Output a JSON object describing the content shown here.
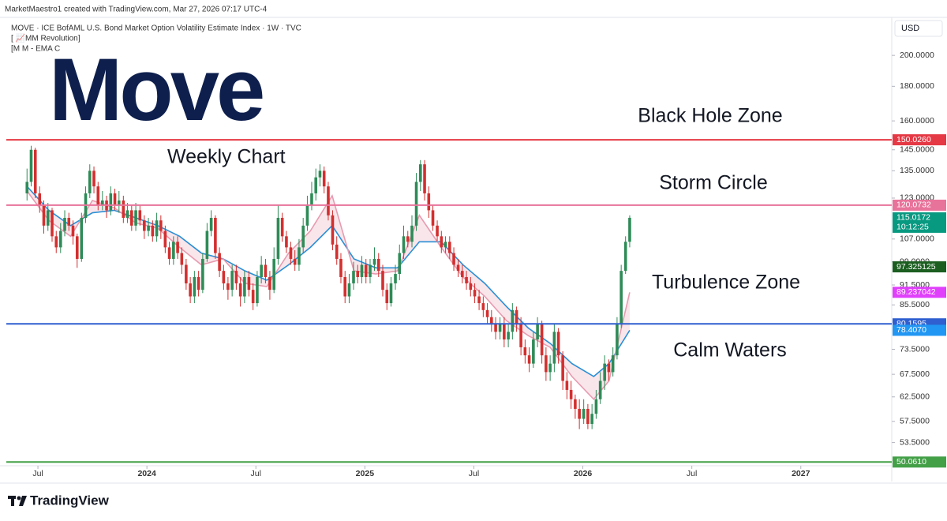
{
  "chart_data": {
    "type": "candlestick",
    "attribution": "MarketMaestro1 created with TradingView.com, Mar 27, 2026 07:17 UTC-4",
    "title": "MOVE · ICE BofAML U.S. Bond Market Option Volatility Estimate Index · 1W · TVC",
    "indicators": [
      "[ 📈MM Revolution]",
      "[M M - EMA C"
    ],
    "watermark": "Move",
    "currency": "USD",
    "brand": "TradingView",
    "log_scale": true,
    "grid": false,
    "up_color": "#2e8b57",
    "down_color": "#d32f2f",
    "xlim": [
      2023.355,
      2027.41
    ],
    "ylim": [
      49.7,
      224
    ],
    "xticks": [
      {
        "value": 2023.5,
        "label": "Jul"
      },
      2024,
      {
        "value": 2024.5,
        "label": "Jul"
      },
      2025,
      {
        "value": 2025.5,
        "label": "Jul"
      },
      2026,
      {
        "value": 2026.5,
        "label": "Jul"
      },
      2027
    ],
    "yticks": [
      {
        "value": 200,
        "label": "200.0000"
      },
      {
        "value": 180,
        "label": "180.0000"
      },
      {
        "value": 160,
        "label": "160.0000"
      },
      {
        "value": 145,
        "label": "145.0000"
      },
      {
        "value": 135,
        "label": "135.0000"
      },
      {
        "value": 123,
        "label": "123.0000"
      },
      {
        "value": 107,
        "label": "107.0000"
      },
      {
        "value": 99,
        "label": "99.0000"
      },
      {
        "value": 91.5,
        "label": "91.5000"
      },
      {
        "value": 85.5,
        "label": "85.5000"
      },
      {
        "value": 73.5,
        "label": "73.5000"
      },
      {
        "value": 67.5,
        "label": "67.5000"
      },
      {
        "value": 62.5,
        "label": "62.5000"
      },
      {
        "value": 57.5,
        "label": "57.5000"
      },
      {
        "value": 53.5,
        "label": "53.5000"
      }
    ],
    "x": [
      2023.45,
      2023.469,
      2023.488,
      2023.508,
      2023.527,
      2023.546,
      2023.565,
      2023.584,
      2023.604,
      2023.623,
      2023.642,
      2023.661,
      2023.68,
      2023.7,
      2023.719,
      2023.738,
      2023.757,
      2023.776,
      2023.796,
      2023.815,
      2023.834,
      2023.853,
      2023.872,
      2023.892,
      2023.911,
      2023.93,
      2023.949,
      2023.968,
      2023.988,
      2024.007,
      2024.026,
      2024.045,
      2024.064,
      2024.084,
      2024.103,
      2024.122,
      2024.141,
      2024.16,
      2024.18,
      2024.199,
      2024.218,
      2024.237,
      2024.256,
      2024.276,
      2024.295,
      2024.314,
      2024.333,
      2024.352,
      2024.372,
      2024.391,
      2024.41,
      2024.429,
      2024.448,
      2024.468,
      2024.487,
      2024.506,
      2024.525,
      2024.544,
      2024.564,
      2024.583,
      2024.602,
      2024.621,
      2024.64,
      2024.66,
      2024.679,
      2024.698,
      2024.717,
      2024.736,
      2024.756,
      2024.775,
      2024.794,
      2024.813,
      2024.832,
      2024.852,
      2024.871,
      2024.89,
      2024.909,
      2024.928,
      2024.948,
      2024.967,
      2024.986,
      2025.005,
      2025.024,
      2025.044,
      2025.063,
      2025.082,
      2025.101,
      2025.12,
      2025.14,
      2025.159,
      2025.178,
      2025.197,
      2025.216,
      2025.236,
      2025.255,
      2025.274,
      2025.293,
      2025.312,
      2025.332,
      2025.351,
      2025.37,
      2025.389,
      2025.408,
      2025.428,
      2025.447,
      2025.466,
      2025.485,
      2025.504,
      2025.524,
      2025.543,
      2025.562,
      2025.581,
      2025.6,
      2025.62,
      2025.639,
      2025.658,
      2025.677,
      2025.696,
      2025.716,
      2025.735,
      2025.754,
      2025.773,
      2025.792,
      2025.812,
      2025.831,
      2025.85,
      2025.869,
      2025.888,
      2025.908,
      2025.927,
      2025.946,
      2025.965,
      2025.984,
      2026.004,
      2026.023,
      2026.042,
      2026.061,
      2026.08,
      2026.1,
      2026.119,
      2026.138,
      2026.157,
      2026.176,
      2026.196,
      2026.215
    ],
    "open": [
      125,
      130,
      145,
      125,
      120,
      112,
      118,
      108,
      104,
      110,
      115,
      112,
      108,
      100,
      115,
      125,
      135,
      128,
      120,
      122,
      118,
      125,
      120,
      122,
      115,
      118,
      112,
      118,
      114,
      110,
      112,
      108,
      114,
      110,
      104,
      100,
      106,
      102,
      98,
      92,
      88,
      94,
      90,
      100,
      110,
      115,
      102,
      96,
      92,
      90,
      96,
      92,
      88,
      94,
      90,
      86,
      94,
      98,
      94,
      90,
      100,
      115,
      108,
      104,
      100,
      98,
      104,
      112,
      120,
      125,
      132,
      135,
      128,
      116,
      105,
      100,
      94,
      88,
      92,
      96,
      94,
      98,
      94,
      98,
      100,
      96,
      90,
      86,
      92,
      95,
      102,
      108,
      106,
      112,
      130,
      138,
      125,
      118,
      112,
      108,
      104,
      106,
      102,
      98,
      96,
      94,
      92,
      90,
      88,
      86,
      84,
      82,
      80,
      78,
      80,
      76,
      78,
      84,
      80,
      74,
      72,
      70,
      76,
      80,
      72,
      68,
      70,
      78,
      72,
      66,
      64,
      62,
      60,
      58,
      60,
      57,
      59,
      62,
      66,
      70,
      68,
      72,
      80,
      96,
      106
    ],
    "high": [
      136,
      147,
      146,
      128,
      122,
      121,
      119,
      110,
      113,
      118,
      117,
      114,
      109,
      117,
      128,
      138,
      137,
      130,
      126,
      124,
      128,
      127,
      126,
      124,
      121,
      120,
      121,
      120,
      116,
      115,
      114,
      117,
      116,
      112,
      106,
      108,
      108,
      104,
      100,
      94,
      96,
      96,
      102,
      113,
      118,
      116,
      104,
      98,
      94,
      98,
      98,
      94,
      96,
      96,
      92,
      96,
      101,
      100,
      96,
      104,
      120,
      117,
      110,
      106,
      103,
      107,
      115,
      124,
      130,
      136,
      138,
      137,
      130,
      118,
      108,
      102,
      96,
      95,
      99,
      98,
      101,
      100,
      100,
      104,
      102,
      98,
      92,
      94,
      98,
      105,
      112,
      110,
      116,
      134,
      140,
      140,
      128,
      120,
      114,
      110,
      108,
      108,
      104,
      100,
      98,
      96,
      94,
      92,
      90,
      88,
      86,
      84,
      82,
      82,
      82,
      80,
      86,
      85,
      82,
      76,
      74,
      78,
      82,
      81,
      74,
      72,
      80,
      79,
      73,
      68,
      66,
      63,
      62,
      62,
      61,
      61,
      64,
      68,
      72,
      71,
      74,
      82,
      98,
      108,
      116
    ],
    "low": [
      122,
      128,
      123,
      117,
      109,
      110,
      106,
      102,
      102,
      108,
      110,
      105,
      97,
      99,
      113,
      123,
      125,
      118,
      118,
      115,
      116,
      118,
      117,
      113,
      113,
      110,
      110,
      112,
      107,
      108,
      106,
      106,
      107,
      102,
      98,
      98,
      100,
      95,
      90,
      86,
      86,
      88,
      89,
      99,
      108,
      100,
      94,
      90,
      87,
      88,
      90,
      85,
      86,
      88,
      84,
      85,
      92,
      92,
      87,
      89,
      98,
      106,
      102,
      98,
      96,
      96,
      102,
      110,
      118,
      122,
      128,
      125,
      114,
      103,
      98,
      92,
      86,
      86,
      90,
      92,
      92,
      92,
      92,
      96,
      94,
      88,
      84,
      85,
      90,
      93,
      100,
      104,
      104,
      110,
      126,
      122,
      115,
      110,
      106,
      102,
      102,
      100,
      96,
      94,
      92,
      90,
      88,
      86,
      84,
      82,
      80,
      78,
      76,
      76,
      74,
      74,
      76,
      78,
      72,
      70,
      68,
      69,
      74,
      70,
      66,
      66,
      68,
      70,
      64,
      62,
      60,
      58,
      56,
      57,
      56,
      56,
      58,
      61,
      64,
      66,
      67,
      71,
      79,
      95,
      104
    ],
    "close": [
      130,
      145,
      125,
      120,
      112,
      118,
      108,
      104,
      110,
      115,
      112,
      108,
      100,
      115,
      125,
      135,
      128,
      120,
      122,
      118,
      125,
      120,
      122,
      115,
      118,
      112,
      118,
      114,
      110,
      112,
      108,
      114,
      110,
      104,
      100,
      106,
      102,
      98,
      92,
      88,
      94,
      90,
      100,
      110,
      115,
      102,
      96,
      92,
      90,
      96,
      92,
      88,
      94,
      90,
      86,
      94,
      98,
      94,
      90,
      100,
      115,
      108,
      104,
      100,
      98,
      104,
      112,
      120,
      125,
      132,
      135,
      128,
      116,
      105,
      100,
      94,
      88,
      92,
      96,
      94,
      98,
      94,
      98,
      100,
      96,
      90,
      86,
      92,
      95,
      102,
      108,
      106,
      112,
      130,
      138,
      125,
      118,
      112,
      108,
      104,
      106,
      102,
      98,
      96,
      94,
      92,
      90,
      88,
      86,
      84,
      82,
      80,
      78,
      80,
      76,
      78,
      84,
      80,
      74,
      72,
      70,
      76,
      80,
      72,
      68,
      70,
      78,
      72,
      66,
      64,
      62,
      60,
      58,
      60,
      57,
      59,
      62,
      66,
      70,
      68,
      72,
      80,
      96,
      106,
      115.0172
    ],
    "lines": [
      {
        "color": "#2a8fd6",
        "x": [
          2023.45,
          2023.55,
          2023.65,
          2023.75,
          2023.85,
          2023.95,
          2024.05,
          2024.15,
          2024.25,
          2024.35,
          2024.45,
          2024.55,
          2024.65,
          2024.75,
          2024.85,
          2024.95,
          2025.05,
          2025.15,
          2025.25,
          2025.35,
          2025.45,
          2025.55,
          2025.65,
          2025.75,
          2025.85,
          2025.95,
          2026.05,
          2026.12,
          2026.215
        ],
        "values": [
          128,
          118,
          112,
          117,
          118,
          115,
          112,
          108,
          102,
          100,
          96,
          93,
          98,
          104,
          112,
          100,
          97,
          97,
          106,
          106,
          98,
          92,
          85,
          79,
          75,
          70,
          67,
          70,
          78.407
        ]
      },
      {
        "color": "#e79bb0",
        "x": [
          2023.45,
          2023.55,
          2023.65,
          2023.75,
          2023.85,
          2023.95,
          2024.05,
          2024.15,
          2024.25,
          2024.35,
          2024.45,
          2024.55,
          2024.65,
          2024.75,
          2024.85,
          2024.95,
          2025.05,
          2025.15,
          2025.25,
          2025.35,
          2025.45,
          2025.55,
          2025.65,
          2025.75,
          2025.85,
          2025.95,
          2026.05,
          2026.12,
          2026.215
        ],
        "values": [
          126,
          114,
          108,
          122,
          119,
          113,
          111,
          104,
          98,
          100,
          92,
          91,
          102,
          110,
          124,
          96,
          95,
          96,
          116,
          104,
          94,
          88,
          81,
          77,
          74,
          67,
          62,
          66,
          89.237042
        ]
      }
    ],
    "levels": [
      {
        "value": 150.026,
        "label": "150.0260",
        "color": "#e53945"
      },
      {
        "value": 120.0732,
        "label": "120.0732",
        "color": "#e8739a"
      },
      {
        "value": 80.1595,
        "label": "80.1595",
        "color": "#2f5fd0"
      },
      {
        "value": 50.061,
        "label": "50.0610",
        "color": "#43a047"
      }
    ],
    "price_markers": [
      {
        "value": 115.0172,
        "label": "115.0172",
        "countdown": "10:12:25",
        "color": "#089981"
      },
      {
        "value": 97.325125,
        "label": "97.325125",
        "color": "#1b5e20"
      },
      {
        "value": 89.237042,
        "label": "89.237042",
        "color": "#e040fb"
      },
      {
        "value": 78.407,
        "label": "78.4070",
        "color": "#2196f3"
      }
    ],
    "annotations": [
      {
        "text": "Weekly Chart",
        "color": "#1a3a8f"
      },
      {
        "text": "Black Hole Zone",
        "color": "#e03445"
      },
      {
        "text": "Storm Circle",
        "color": "#e8739a"
      },
      {
        "text": "Turbulence Zone",
        "color": "#3f6bd6"
      },
      {
        "text": "Calm Waters",
        "color": "#4caf50"
      }
    ]
  }
}
